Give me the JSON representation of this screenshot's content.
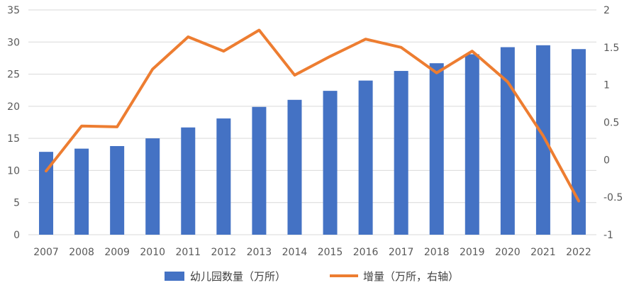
{
  "chart_data": {
    "type": "bar",
    "categories": [
      "2007",
      "2008",
      "2009",
      "2010",
      "2011",
      "2012",
      "2013",
      "2014",
      "2015",
      "2016",
      "2017",
      "2018",
      "2019",
      "2020",
      "2021",
      "2022"
    ],
    "series": [
      {
        "name": "幼儿园数量（万所）",
        "type": "bar",
        "axis": "left",
        "color": "#4472C4",
        "values": [
          12.9,
          13.4,
          13.8,
          15.0,
          16.7,
          18.1,
          19.9,
          21.0,
          22.4,
          24.0,
          25.5,
          26.7,
          28.1,
          29.2,
          29.5,
          28.9
        ]
      },
      {
        "name": "增量（万所，右轴）",
        "type": "line",
        "axis": "right",
        "color": "#ED7D31",
        "values": [
          -0.15,
          0.45,
          0.44,
          1.21,
          1.64,
          1.45,
          1.73,
          1.13,
          1.38,
          1.61,
          1.5,
          1.16,
          1.45,
          1.04,
          0.32,
          -0.55
        ]
      }
    ],
    "ylim_left": [
      0,
      35
    ],
    "yticks_left": [
      "0",
      "5",
      "10",
      "15",
      "20",
      "25",
      "30",
      "35"
    ],
    "ylim_right": [
      -1,
      2
    ],
    "yticks_right": [
      "-1",
      "-0.5",
      "0",
      "0.5",
      "1",
      "1.5",
      "2"
    ],
    "grid": true,
    "legend_position": "bottom"
  }
}
